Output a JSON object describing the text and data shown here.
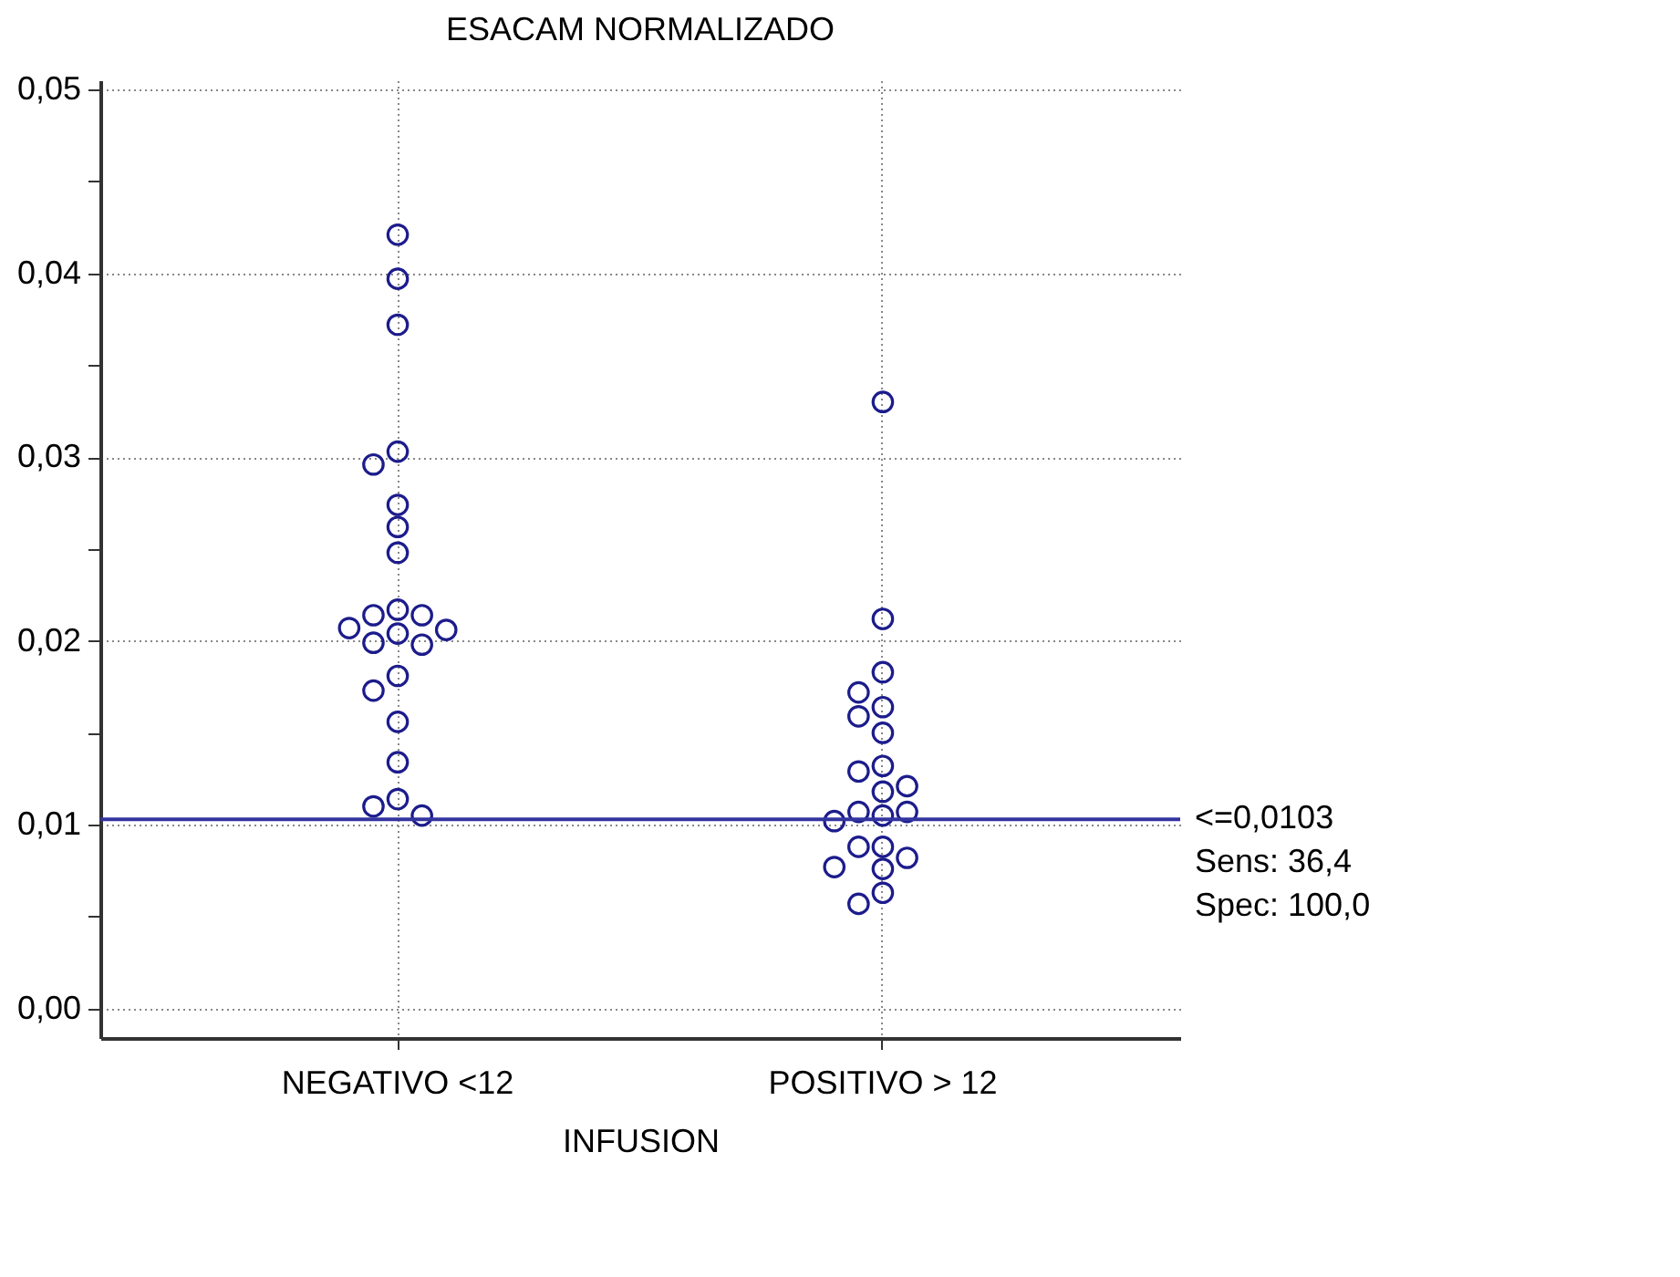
{
  "chart_data": {
    "type": "scatter",
    "title": "ESACAM NORMALIZADO",
    "xlabel": "INFUSION",
    "categories": [
      "NEGATIVO <12",
      "POSITIVO > 12"
    ],
    "series": [
      {
        "color": "#1c1c8c",
        "x": [
          "NEGATIVO <12",
          "NEGATIVO <12",
          "NEGATIVO <12",
          "NEGATIVO <12",
          "NEGATIVO <12",
          "NEGATIVO <12",
          "NEGATIVO <12",
          "NEGATIVO <12",
          "NEGATIVO <12",
          "NEGATIVO <12",
          "NEGATIVO <12",
          "NEGATIVO <12",
          "NEGATIVO <12",
          "NEGATIVO <12",
          "NEGATIVO <12",
          "NEGATIVO <12",
          "NEGATIVO <12",
          "NEGATIVO <12",
          "NEGATIVO <12",
          "NEGATIVO <12",
          "NEGATIVO <12",
          "NEGATIVO <12",
          "NEGATIVO <12"
        ],
        "values": [
          0.0421,
          0.0397,
          0.0372,
          0.0303,
          0.0296,
          0.0274,
          0.0262,
          0.0248,
          0.0217,
          0.0214,
          0.0214,
          0.0207,
          0.0206,
          0.0204,
          0.0199,
          0.0198,
          0.0181,
          0.0173,
          0.0156,
          0.0134,
          0.0114,
          0.011,
          0.0105
        ]
      },
      {
        "color": "#1c1c8c",
        "x": [
          "POSITIVO > 12",
          "POSITIVO > 12",
          "POSITIVO > 12",
          "POSITIVO > 12",
          "POSITIVO > 12",
          "POSITIVO > 12",
          "POSITIVO > 12",
          "POSITIVO > 12",
          "POSITIVO > 12",
          "POSITIVO > 12",
          "POSITIVO > 12",
          "POSITIVO > 12",
          "POSITIVO > 12",
          "POSITIVO > 12",
          "POSITIVO > 12",
          "POSITIVO > 12",
          "POSITIVO > 12",
          "POSITIVO > 12",
          "POSITIVO > 12",
          "POSITIVO > 12",
          "POSITIVO > 12",
          "POSITIVO > 12"
        ],
        "values": [
          0.033,
          0.0212,
          0.0183,
          0.0172,
          0.0164,
          0.0159,
          0.015,
          0.0132,
          0.0129,
          0.0121,
          0.0118,
          0.0107,
          0.0107,
          0.0105,
          0.0102,
          0.0088,
          0.0088,
          0.0082,
          0.0077,
          0.0076,
          0.0063,
          0.0057
        ]
      }
    ],
    "marker": "circle",
    "ylim": [
      -0.0016,
      0.0505
    ],
    "yticks": [
      {
        "value": 0,
        "label": "0,00"
      },
      {
        "value": 0.005,
        "label": null
      },
      {
        "value": 0.01,
        "label": "0,01"
      },
      {
        "value": 0.015,
        "label": null
      },
      {
        "value": 0.02,
        "label": "0,02"
      },
      {
        "value": 0.025,
        "label": null
      },
      {
        "value": 0.03,
        "label": "0,03"
      },
      {
        "value": 0.035,
        "label": null
      },
      {
        "value": 0.04,
        "label": "0,04"
      },
      {
        "value": 0.045,
        "label": null
      },
      {
        "value": 0.05,
        "label": "0,05"
      }
    ],
    "grid": true,
    "ref_lines": [
      {
        "axis": "y",
        "value": 0.0103,
        "label": "<=0,0103",
        "color": "#3434a0"
      }
    ],
    "annotations": [
      "Sens: 36,4",
      "Spec: 100,0"
    ]
  }
}
